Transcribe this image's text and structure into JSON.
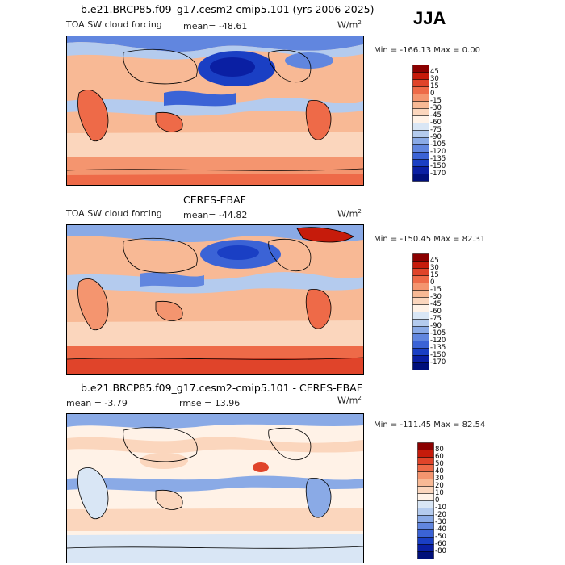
{
  "season": "JJA",
  "panels": [
    {
      "title": "b.e21.BRCP85.f09_g17.cesm2-cmip5.101 (yrs 2006-2025)",
      "field": "TOA SW cloud forcing",
      "stat_left": "mean=  -48.61",
      "stat_right": "",
      "units": "W/m",
      "units_exp": "2",
      "minmax": "Min = -166.13 Max =    0.00",
      "levels": [
        "45",
        "30",
        "15",
        "0",
        "-15",
        "-30",
        "-45",
        "-60",
        "-75",
        "-90",
        "-105",
        "-120",
        "-135",
        "-150",
        "-170"
      ],
      "colors": [
        "#8b0000",
        "#c61b0b",
        "#e0442a",
        "#ee6a48",
        "#f4956f",
        "#f8b995",
        "#fbd6bd",
        "#fff2e7",
        "#d9e6f5",
        "#b4cbee",
        "#8aaae6",
        "#6186df",
        "#3b63d6",
        "#1a3fc4",
        "#0a1fa3",
        "#000f7a"
      ]
    },
    {
      "title": "CERES-EBAF",
      "field": "TOA SW cloud forcing",
      "stat_left": "mean=  -44.82",
      "stat_right": "",
      "units": "W/m",
      "units_exp": "2",
      "minmax": "Min = -150.45 Max =   82.31",
      "levels": [
        "45",
        "30",
        "15",
        "0",
        "-15",
        "-30",
        "-45",
        "-60",
        "-75",
        "-90",
        "-105",
        "-120",
        "-135",
        "-150",
        "-170"
      ],
      "colors": [
        "#8b0000",
        "#c61b0b",
        "#e0442a",
        "#ee6a48",
        "#f4956f",
        "#f8b995",
        "#fbd6bd",
        "#fff2e7",
        "#d9e6f5",
        "#b4cbee",
        "#8aaae6",
        "#6186df",
        "#3b63d6",
        "#1a3fc4",
        "#0a1fa3",
        "#000f7a"
      ]
    },
    {
      "title": "b.e21.BRCP85.f09_g17.cesm2-cmip5.101 - CERES-EBAF",
      "field": "",
      "stat_left": "mean =   -3.79",
      "stat_right": "rmse =   13.96",
      "units": "W/m",
      "units_exp": "2",
      "minmax": "Min = -111.45 Max =   82.54",
      "levels": [
        "80",
        "60",
        "50",
        "40",
        "30",
        "20",
        "10",
        "0",
        "-10",
        "-20",
        "-30",
        "-40",
        "-50",
        "-60",
        "-80"
      ],
      "colors": [
        "#8b0000",
        "#c61b0b",
        "#e0442a",
        "#ee6a48",
        "#f4956f",
        "#f8b995",
        "#fbd6bd",
        "#fff2e7",
        "#d9e6f5",
        "#b4cbee",
        "#8aaae6",
        "#6186df",
        "#3b63d6",
        "#1a3fc4",
        "#0a1fa3",
        "#000f7a"
      ]
    }
  ]
}
